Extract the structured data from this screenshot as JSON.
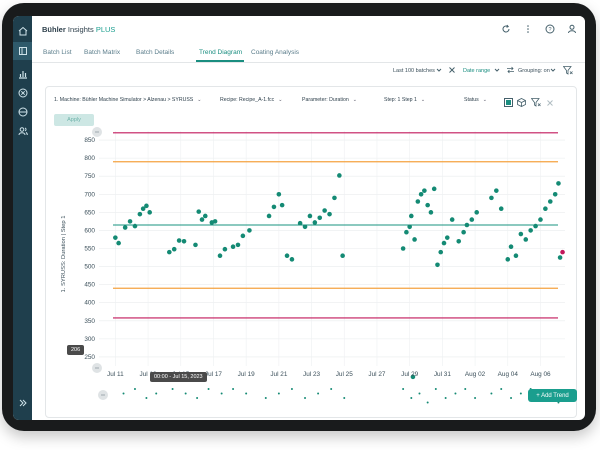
{
  "brand": {
    "name": "Bühler",
    "product": "Insights",
    "plus": "PLUS"
  },
  "tabs": [
    "Batch List",
    "Batch Matrix",
    "Batch Details",
    "Trend Diagram",
    "Coating Analysis"
  ],
  "filters": {
    "range": "Last 100 batches",
    "date_range": "Date range",
    "grouping": "Grouping: on"
  },
  "selectors": {
    "machine": "1. Machine: Bühler Machine Simulator > Alzenau > SYRUSS",
    "recipe": "Recipe: Recipe_A-1.fcc",
    "parameter": "Parameter: Duration",
    "step": "Step: 1 Step 1",
    "status": "Status"
  },
  "apply_label": "Apply",
  "add_trend_label": "+ Add Trend",
  "tooltip_y": "206",
  "tooltip_x": "00:00 - Jul 15, 2023",
  "colors": {
    "sidebar": "#1f3f4d",
    "accent": "#1a8e80",
    "limit_red": "#c2185b",
    "limit_orange": "#f4a340",
    "mean": "#17937f",
    "point": "#148a74",
    "outlier": "#c2185b"
  },
  "chart_data": {
    "type": "scatter",
    "ylabel": "1. SYRUSS: Duration | Step 1",
    "y_ticks": [
      250,
      300,
      350,
      400,
      450,
      500,
      550,
      600,
      650,
      700,
      750,
      800,
      850
    ],
    "ylim": [
      225,
      875
    ],
    "x_ticks": [
      "Jul 11",
      "Jul 13",
      "Jul 15",
      "Jul 17",
      "Jul 19",
      "Jul 21",
      "Jul 23",
      "Jul 25",
      "Jul 27",
      "Jul 29",
      "Jul 31",
      "Aug 02",
      "Aug 04",
      "Aug 06"
    ],
    "x_tick_days": [
      0,
      2,
      4,
      6,
      8,
      10,
      12,
      14,
      16,
      18,
      20,
      22,
      24,
      26
    ],
    "xlim": [
      -1,
      27.5
    ],
    "reference_lines": [
      {
        "kind": "upper_control",
        "value": 870
      },
      {
        "kind": "upper_warning",
        "value": 790
      },
      {
        "kind": "mean",
        "value": 615
      },
      {
        "kind": "lower_warning",
        "value": 440
      },
      {
        "kind": "lower_control",
        "value": 358
      }
    ],
    "points": [
      [
        0.0,
        580
      ],
      [
        0.2,
        565
      ],
      [
        0.6,
        608
      ],
      [
        0.9,
        625
      ],
      [
        1.2,
        612
      ],
      [
        1.5,
        645
      ],
      [
        1.7,
        660
      ],
      [
        1.9,
        668
      ],
      [
        2.1,
        650
      ],
      [
        3.3,
        540
      ],
      [
        3.6,
        548
      ],
      [
        3.9,
        572
      ],
      [
        4.2,
        570
      ],
      [
        4.9,
        560
      ],
      [
        5.1,
        652
      ],
      [
        5.3,
        630
      ],
      [
        5.5,
        640
      ],
      [
        5.9,
        622
      ],
      [
        6.1,
        625
      ],
      [
        6.4,
        530
      ],
      [
        6.7,
        548
      ],
      [
        7.2,
        555
      ],
      [
        7.5,
        560
      ],
      [
        7.8,
        585
      ],
      [
        8.2,
        600
      ],
      [
        9.4,
        640
      ],
      [
        9.7,
        665
      ],
      [
        10.0,
        700
      ],
      [
        10.2,
        670
      ],
      [
        10.5,
        530
      ],
      [
        10.8,
        520
      ],
      [
        11.3,
        620
      ],
      [
        11.6,
        610
      ],
      [
        11.9,
        640
      ],
      [
        12.2,
        622
      ],
      [
        12.5,
        635
      ],
      [
        12.8,
        655
      ],
      [
        13.1,
        645
      ],
      [
        13.4,
        690
      ],
      [
        13.7,
        752
      ],
      [
        13.9,
        530
      ],
      [
        17.6,
        550
      ],
      [
        17.8,
        595
      ],
      [
        18.0,
        610
      ],
      [
        18.1,
        640
      ],
      [
        18.3,
        575
      ],
      [
        18.5,
        680
      ],
      [
        18.7,
        700
      ],
      [
        18.9,
        710
      ],
      [
        19.1,
        670
      ],
      [
        19.3,
        650
      ],
      [
        19.5,
        715
      ],
      [
        19.7,
        505
      ],
      [
        19.9,
        540
      ],
      [
        20.1,
        565
      ],
      [
        20.3,
        580
      ],
      [
        20.6,
        630
      ],
      [
        21.0,
        570
      ],
      [
        21.3,
        595
      ],
      [
        21.5,
        615
      ],
      [
        21.8,
        630
      ],
      [
        22.1,
        650
      ],
      [
        23.0,
        690
      ],
      [
        23.3,
        710
      ],
      [
        23.6,
        660
      ],
      [
        24.0,
        520
      ],
      [
        24.2,
        555
      ],
      [
        24.5,
        530
      ],
      [
        24.8,
        590
      ],
      [
        25.1,
        575
      ],
      [
        25.4,
        600
      ],
      [
        25.7,
        612
      ],
      [
        26.0,
        630
      ],
      [
        26.3,
        660
      ],
      [
        26.6,
        680
      ],
      [
        26.9,
        700
      ],
      [
        27.1,
        730
      ],
      [
        27.2,
        525
      ]
    ],
    "outlier_points": [
      [
        27.35,
        540
      ]
    ],
    "bottom_point": [
      18.2,
      195
    ],
    "overview_points": [
      [
        0.5,
        1
      ],
      [
        1.2,
        0
      ],
      [
        1.9,
        2
      ],
      [
        2.5,
        1
      ],
      [
        3.5,
        0
      ],
      [
        4.3,
        1
      ],
      [
        5.0,
        2
      ],
      [
        5.7,
        0
      ],
      [
        6.5,
        1
      ],
      [
        7.2,
        0
      ],
      [
        8.0,
        1
      ],
      [
        9.2,
        2
      ],
      [
        10.0,
        1
      ],
      [
        10.8,
        0
      ],
      [
        11.6,
        2
      ],
      [
        12.4,
        1
      ],
      [
        13.2,
        0
      ],
      [
        14.0,
        2
      ],
      [
        17.6,
        0
      ],
      [
        18.1,
        2
      ],
      [
        18.6,
        1
      ],
      [
        19.1,
        3
      ],
      [
        19.6,
        0
      ],
      [
        20.2,
        2
      ],
      [
        20.8,
        1
      ],
      [
        21.4,
        0
      ],
      [
        22.0,
        2
      ],
      [
        23.0,
        1
      ],
      [
        23.6,
        0
      ],
      [
        24.2,
        2
      ],
      [
        24.8,
        1
      ],
      [
        25.4,
        0
      ],
      [
        26.0,
        2
      ],
      [
        26.6,
        1
      ],
      [
        27.1,
        3
      ]
    ]
  }
}
